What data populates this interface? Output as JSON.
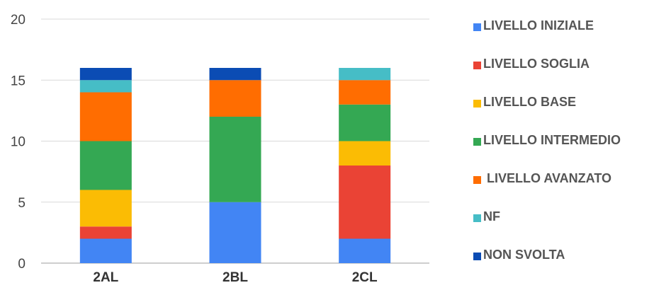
{
  "chart_data": {
    "type": "bar",
    "stacked": true,
    "categories": [
      "2AL",
      "2BL",
      "2CL"
    ],
    "series": [
      {
        "name": "LIVELLO INIZIALE",
        "color": "#4285F4",
        "values": [
          2,
          5,
          2
        ]
      },
      {
        "name": "LIVELLO SOGLIA",
        "color": "#EA4335",
        "values": [
          1,
          0,
          6
        ]
      },
      {
        "name": "LIVELLO BASE",
        "color": "#FBBC04",
        "values": [
          3,
          0,
          2
        ]
      },
      {
        "name": "LIVELLO INTERMEDIO",
        "color": "#34A853",
        "values": [
          4,
          7,
          3
        ]
      },
      {
        "name": " LIVELLO AVANZATO",
        "color": "#FF6D01",
        "values": [
          4,
          3,
          2
        ]
      },
      {
        "name": "NF",
        "color": "#46BDC6",
        "values": [
          1,
          0,
          1
        ]
      },
      {
        "name": "NON SVOLTA",
        "color": "#0B4CB4",
        "values": [
          1,
          1,
          0
        ]
      }
    ],
    "yticks": [
      "0",
      "5",
      "10",
      "15",
      "20"
    ],
    "ylim": [
      0,
      20
    ],
    "grid": true,
    "legend": "right"
  }
}
